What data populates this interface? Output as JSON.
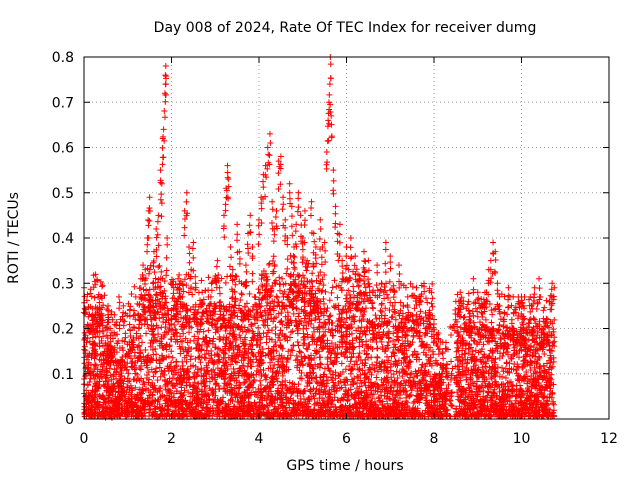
{
  "chart_data": {
    "type": "scatter",
    "title": "Day 008 of 2024, Rate Of TEC Index for receiver dumg",
    "xlabel": "GPS time / hours",
    "ylabel": "ROTI / TECUs",
    "xlim": [
      0,
      12
    ],
    "ylim": [
      0,
      0.8
    ],
    "x_ticks": [
      0,
      2,
      4,
      6,
      8,
      10,
      12
    ],
    "x_tick_labels": [
      "0",
      "2",
      "4",
      "6",
      "8",
      "10",
      "12"
    ],
    "y_ticks": [
      0,
      0.1,
      0.2,
      0.3,
      0.4,
      0.5,
      0.6,
      0.7,
      0.8
    ],
    "y_tick_labels": [
      "0",
      "0.1",
      "0.2",
      "0.3",
      "0.4",
      "0.5",
      "0.6",
      "0.7",
      "0.8"
    ],
    "grid": true,
    "marker": "plus",
    "color": "#ff0000",
    "x_max_data": 10.75,
    "series": [
      {
        "points": [
          [
            0.0,
            0.29
          ],
          [
            0.02,
            0.16
          ],
          [
            0.05,
            0.05
          ],
          [
            0.1,
            0.12
          ],
          [
            0.15,
            0.02
          ],
          [
            0.2,
            0.18
          ],
          [
            0.25,
            0.21
          ],
          [
            0.3,
            0.08
          ],
          [
            0.35,
            0.22
          ],
          [
            0.4,
            0.27
          ],
          [
            0.45,
            0.14
          ],
          [
            0.5,
            0.04
          ],
          [
            0.55,
            0.25
          ],
          [
            0.6,
            0.2
          ],
          [
            0.65,
            0.06
          ],
          [
            0.7,
            0.23
          ],
          [
            0.8,
            0.27
          ],
          [
            0.85,
            0.13
          ],
          [
            0.9,
            0.25
          ],
          [
            1.0,
            0.09
          ],
          [
            1.05,
            0.24
          ],
          [
            1.1,
            0.17
          ],
          [
            1.2,
            0.03
          ],
          [
            1.25,
            0.2
          ],
          [
            1.3,
            0.31
          ],
          [
            1.35,
            0.34
          ],
          [
            1.4,
            0.33
          ],
          [
            1.45,
            0.4
          ],
          [
            1.48,
            0.46
          ],
          [
            1.5,
            0.49
          ],
          [
            1.55,
            0.22
          ],
          [
            1.6,
            0.37
          ],
          [
            1.65,
            0.42
          ],
          [
            1.7,
            0.45
          ],
          [
            1.75,
            0.55
          ],
          [
            1.78,
            0.52
          ],
          [
            1.8,
            0.62
          ],
          [
            1.82,
            0.64
          ],
          [
            1.85,
            0.72
          ],
          [
            1.86,
            0.76
          ],
          [
            1.87,
            0.78
          ],
          [
            1.9,
            0.4
          ],
          [
            1.95,
            0.16
          ],
          [
            2.0,
            0.24
          ],
          [
            2.05,
            0.29
          ],
          [
            2.1,
            0.26
          ],
          [
            2.15,
            0.31
          ],
          [
            2.2,
            0.11
          ],
          [
            2.25,
            0.27
          ],
          [
            2.3,
            0.46
          ],
          [
            2.35,
            0.5
          ],
          [
            2.4,
            0.38
          ],
          [
            2.45,
            0.33
          ],
          [
            2.5,
            0.39
          ],
          [
            2.55,
            0.3
          ],
          [
            2.6,
            0.22
          ],
          [
            2.7,
            0.28
          ],
          [
            2.8,
            0.18
          ],
          [
            2.9,
            0.27
          ],
          [
            3.0,
            0.25
          ],
          [
            3.05,
            0.35
          ],
          [
            3.1,
            0.29
          ],
          [
            3.2,
            0.45
          ],
          [
            3.25,
            0.51
          ],
          [
            3.28,
            0.56
          ],
          [
            3.3,
            0.53
          ],
          [
            3.35,
            0.38
          ],
          [
            3.4,
            0.33
          ],
          [
            3.5,
            0.43
          ],
          [
            3.55,
            0.37
          ],
          [
            3.6,
            0.3
          ],
          [
            3.7,
            0.34
          ],
          [
            3.75,
            0.41
          ],
          [
            3.8,
            0.45
          ],
          [
            3.85,
            0.38
          ],
          [
            3.9,
            0.27
          ],
          [
            4.0,
            0.44
          ],
          [
            4.05,
            0.49
          ],
          [
            4.1,
            0.54
          ],
          [
            4.15,
            0.56
          ],
          [
            4.2,
            0.6
          ],
          [
            4.25,
            0.63
          ],
          [
            4.3,
            0.48
          ],
          [
            4.35,
            0.42
          ],
          [
            4.4,
            0.46
          ],
          [
            4.45,
            0.57
          ],
          [
            4.5,
            0.58
          ],
          [
            4.55,
            0.49
          ],
          [
            4.6,
            0.44
          ],
          [
            4.65,
            0.4
          ],
          [
            4.7,
            0.52
          ],
          [
            4.75,
            0.47
          ],
          [
            4.8,
            0.38
          ],
          [
            4.85,
            0.43
          ],
          [
            4.9,
            0.5
          ],
          [
            4.95,
            0.45
          ],
          [
            5.0,
            0.4
          ],
          [
            5.05,
            0.46
          ],
          [
            5.1,
            0.35
          ],
          [
            5.2,
            0.48
          ],
          [
            5.25,
            0.41
          ],
          [
            5.3,
            0.38
          ],
          [
            5.4,
            0.44
          ],
          [
            5.45,
            0.38
          ],
          [
            5.5,
            0.39
          ],
          [
            5.55,
            0.59
          ],
          [
            5.58,
            0.66
          ],
          [
            5.6,
            0.7
          ],
          [
            5.62,
            0.74
          ],
          [
            5.63,
            0.8
          ],
          [
            5.65,
            0.67
          ],
          [
            5.7,
            0.55
          ],
          [
            5.75,
            0.47
          ],
          [
            5.8,
            0.41
          ],
          [
            5.85,
            0.43
          ],
          [
            5.9,
            0.35
          ],
          [
            6.0,
            0.38
          ],
          [
            6.05,
            0.33
          ],
          [
            6.1,
            0.4
          ],
          [
            6.2,
            0.36
          ],
          [
            6.3,
            0.31
          ],
          [
            6.4,
            0.37
          ],
          [
            6.5,
            0.35
          ],
          [
            6.6,
            0.28
          ],
          [
            6.7,
            0.34
          ],
          [
            6.8,
            0.3
          ],
          [
            6.9,
            0.39
          ],
          [
            7.0,
            0.36
          ],
          [
            7.1,
            0.28
          ],
          [
            7.2,
            0.34
          ],
          [
            7.3,
            0.25
          ],
          [
            7.4,
            0.27
          ],
          [
            7.5,
            0.23
          ],
          [
            7.6,
            0.29
          ],
          [
            7.7,
            0.26
          ],
          [
            7.8,
            0.2
          ],
          [
            7.9,
            0.24
          ],
          [
            8.0,
            0.22
          ],
          [
            8.1,
            0.19
          ],
          [
            8.2,
            0.17
          ],
          [
            8.3,
            0.12
          ],
          [
            8.4,
            0.1
          ],
          [
            8.5,
            0.26
          ],
          [
            8.6,
            0.28
          ],
          [
            8.7,
            0.21
          ],
          [
            8.8,
            0.24
          ],
          [
            8.9,
            0.31
          ],
          [
            9.0,
            0.28
          ],
          [
            9.1,
            0.25
          ],
          [
            9.2,
            0.28
          ],
          [
            9.25,
            0.33
          ],
          [
            9.3,
            0.35
          ],
          [
            9.35,
            0.39
          ],
          [
            9.4,
            0.37
          ],
          [
            9.45,
            0.3
          ],
          [
            9.5,
            0.25
          ],
          [
            9.6,
            0.22
          ],
          [
            9.7,
            0.29
          ],
          [
            9.8,
            0.2
          ],
          [
            9.9,
            0.18
          ],
          [
            10.0,
            0.27
          ],
          [
            10.05,
            0.25
          ],
          [
            10.1,
            0.19
          ],
          [
            10.2,
            0.27
          ],
          [
            10.3,
            0.29
          ],
          [
            10.4,
            0.31
          ],
          [
            10.5,
            0.24
          ],
          [
            10.6,
            0.22
          ],
          [
            10.7,
            0.3
          ],
          [
            10.75,
            0.29
          ]
        ]
      }
    ]
  }
}
